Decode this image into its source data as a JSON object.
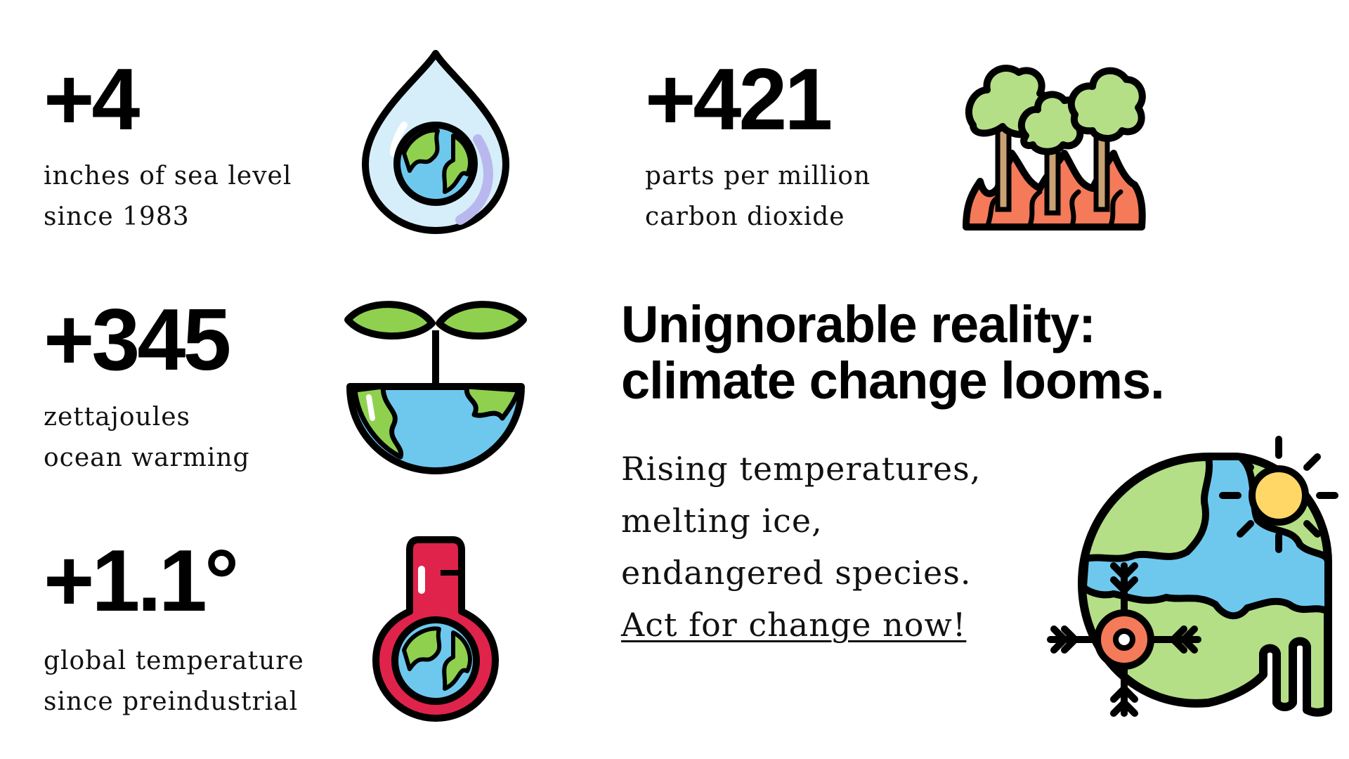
{
  "stats": [
    {
      "number": "+4",
      "line1": "inches of sea level",
      "line2": "since 1983",
      "icon": "water-drop-earth-icon"
    },
    {
      "number": "+421",
      "line1": "parts per million",
      "line2": "carbon dioxide",
      "icon": "forest-fire-icon"
    },
    {
      "number": "+345",
      "line1": "zettajoules",
      "line2": "ocean warming",
      "icon": "sprouting-earth-icon"
    },
    {
      "number": "+1.1°",
      "line1": "global temperature",
      "line2": "since preindustrial",
      "icon": "thermometer-earth-icon"
    }
  ],
  "headline": {
    "line1": "Unignorable reality:",
    "line2": "climate change looms."
  },
  "body": {
    "line1": "Rising temperatures,",
    "line2": "melting ice,",
    "line3": "endangered species.",
    "cta": "Act for change now!"
  },
  "colors": {
    "outline": "#000000",
    "green": "#8fd14f",
    "light_green": "#b4df86",
    "blue": "#6ec8ee",
    "light_blue": "#d6eefa",
    "red": "#e0234b",
    "fire": "#f47a5a",
    "trunk": "#c9a173",
    "sun": "#ffd767"
  }
}
